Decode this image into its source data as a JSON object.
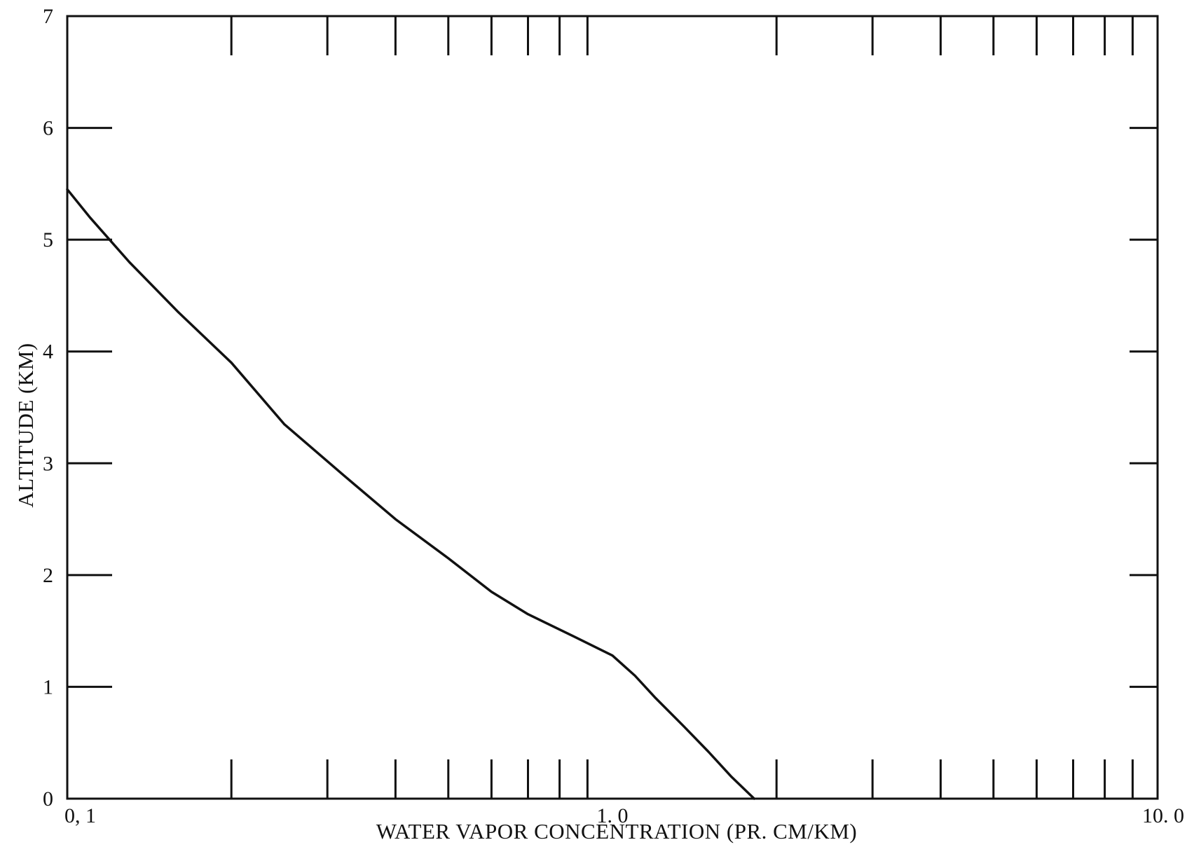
{
  "chart_data": {
    "type": "line",
    "title": "",
    "xlabel": "WATER VAPOR CONCENTRATION (PR. CM/KM)",
    "ylabel": "ALTITUDE (KM)",
    "xscale": "log",
    "xlim": [
      0.1,
      10.0
    ],
    "ylim": [
      0,
      7
    ],
    "x_tick_labels": [
      "0.1",
      "1.0",
      "10.0"
    ],
    "x_tick_label_text": [
      "0, 1",
      "1. 0",
      "10. 0"
    ],
    "y_tick_labels": [
      "0",
      "1",
      "2",
      "3",
      "4",
      "5",
      "6",
      "7"
    ],
    "grid": false,
    "legend": "none",
    "series": [
      {
        "x": [
          0.1,
          0.11,
          0.13,
          0.16,
          0.2,
          0.25,
          0.32,
          0.4,
          0.5,
          0.6,
          0.7,
          0.85,
          1.0,
          1.1,
          1.2,
          1.35,
          1.5,
          1.65,
          1.82
        ],
        "y": [
          5.45,
          5.2,
          4.8,
          4.35,
          3.9,
          3.35,
          2.9,
          2.5,
          2.15,
          1.85,
          1.65,
          1.45,
          1.28,
          1.1,
          0.9,
          0.65,
          0.42,
          0.2,
          0.0
        ]
      }
    ]
  }
}
